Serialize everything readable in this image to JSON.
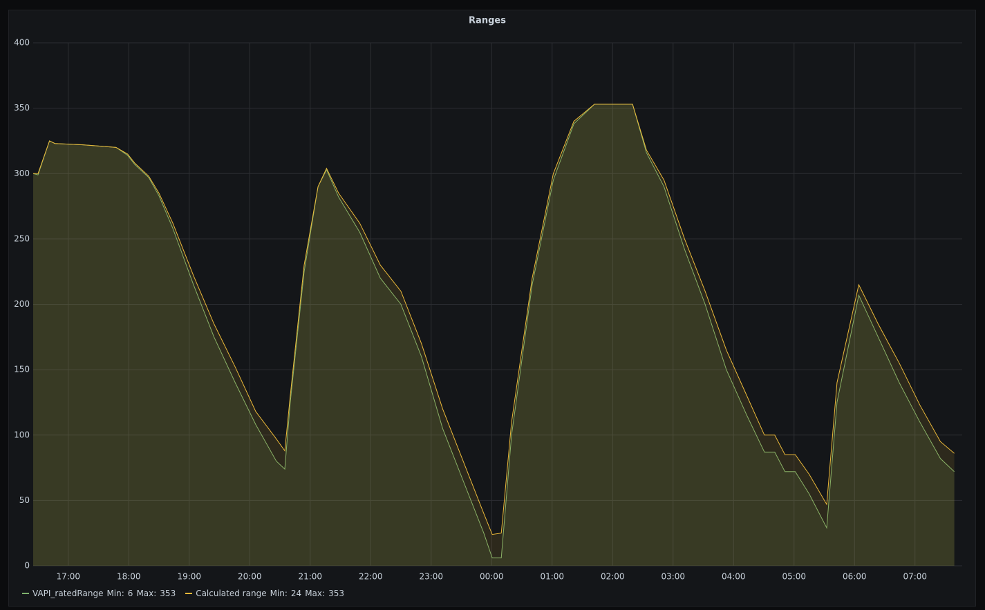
{
  "chart_data": {
    "type": "area-line",
    "title": "Ranges",
    "x": [
      16.42,
      16.5,
      16.69,
      16.78,
      17.24,
      17.79,
      17.98,
      18.1,
      18.33,
      18.5,
      18.73,
      19.07,
      19.41,
      19.76,
      20.1,
      20.44,
      20.58,
      20.67,
      20.9,
      21.13,
      21.27,
      21.47,
      21.82,
      22.16,
      22.5,
      22.84,
      23.19,
      23.53,
      23.87,
      24.01,
      24.16,
      24.33,
      24.67,
      25.02,
      25.36,
      25.7,
      26.33,
      26.56,
      26.85,
      27.19,
      27.53,
      27.88,
      28.22,
      28.51,
      28.68,
      28.85,
      29.02,
      29.25,
      29.54,
      29.71,
      30.07,
      30.39,
      30.74,
      31.08,
      31.42,
      31.65
    ],
    "series": [
      {
        "name": "VAPI_ratedRange",
        "color": "#7eb26d",
        "min": 6,
        "max": 353,
        "values": [
          300,
          299,
          325,
          323,
          322,
          320,
          314,
          307,
          297,
          283,
          258,
          215,
          175,
          140,
          108,
          80,
          74,
          125,
          225,
          290,
          303,
          282,
          255,
          220,
          200,
          160,
          105,
          65,
          25,
          6,
          6,
          100,
          215,
          295,
          338,
          353,
          353,
          316,
          290,
          242,
          200,
          150,
          115,
          87,
          87,
          72,
          72,
          55,
          29,
          125,
          207,
          175,
          140,
          110,
          82,
          72
        ]
      },
      {
        "name": "Calculated range",
        "color": "#eab839",
        "min": 24,
        "max": 353,
        "values": [
          300,
          300,
          325,
          323,
          322,
          320,
          315,
          308,
          298,
          285,
          262,
          222,
          185,
          152,
          118,
          97,
          88,
          130,
          230,
          290,
          304,
          285,
          262,
          230,
          210,
          170,
          120,
          80,
          40,
          24,
          25,
          110,
          220,
          300,
          340,
          353,
          353,
          318,
          295,
          250,
          210,
          165,
          130,
          100,
          100,
          85,
          85,
          70,
          47,
          140,
          215,
          185,
          155,
          123,
          95,
          86
        ]
      }
    ],
    "legend_labels": {
      "min": "Min:",
      "max": "Max:"
    },
    "xlim": [
      16.42,
      31.78
    ],
    "xticks": [
      {
        "value": 17,
        "label": "17:00"
      },
      {
        "value": 18,
        "label": "18:00"
      },
      {
        "value": 19,
        "label": "19:00"
      },
      {
        "value": 20,
        "label": "20:00"
      },
      {
        "value": 21,
        "label": "21:00"
      },
      {
        "value": 22,
        "label": "22:00"
      },
      {
        "value": 23,
        "label": "23:00"
      },
      {
        "value": 24,
        "label": "00:00"
      },
      {
        "value": 25,
        "label": "01:00"
      },
      {
        "value": 26,
        "label": "02:00"
      },
      {
        "value": 27,
        "label": "03:00"
      },
      {
        "value": 28,
        "label": "04:00"
      },
      {
        "value": 29,
        "label": "05:00"
      },
      {
        "value": 30,
        "label": "06:00"
      },
      {
        "value": 31,
        "label": "07:00"
      }
    ],
    "ylim": [
      0,
      400
    ],
    "yticks": [
      0,
      50,
      100,
      150,
      200,
      250,
      300,
      350,
      400
    ],
    "grid": true,
    "fill_opacity": 0.12
  }
}
